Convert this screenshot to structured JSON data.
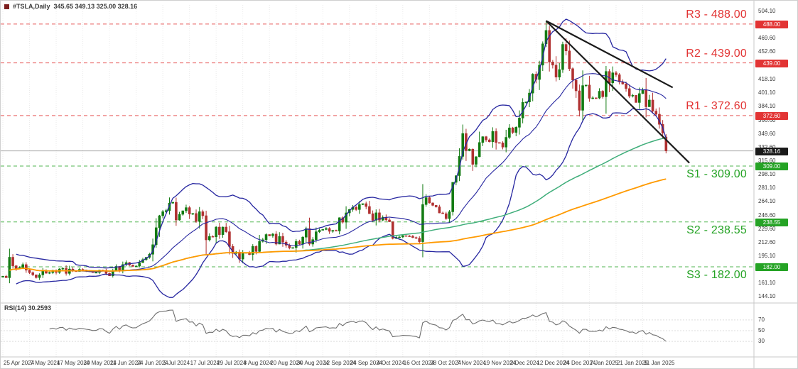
{
  "header": {
    "symbol": "#TSLA,Daily",
    "ohlc": "345.65 349.13 325.00 328.16"
  },
  "rsi_pane": {
    "label": "RSI(14) 30.2593"
  },
  "chart_data": {
    "type": "candlestick",
    "title": "#TSLA,Daily",
    "y_range": [
      140,
      512
    ],
    "y_axis_ticks": [
      504.1,
      486.6,
      469.6,
      452.6,
      435.6,
      418.1,
      401.1,
      384.1,
      366.6,
      349.6,
      332.6,
      315.6,
      298.1,
      281.1,
      264.1,
      246.6,
      229.6,
      212.6,
      195.1,
      178.1,
      161.1,
      144.1
    ],
    "x_tick_labels": [
      "25 Apr 2024",
      "7 May 2024",
      "17 May 2024",
      "30 May 2024",
      "11 Jun 2024",
      "24 Jun 2024",
      "5 Jul 2024",
      "17 Jul 2024",
      "29 Jul 2024",
      "8 Aug 2024",
      "20 Aug 2024",
      "30 Aug 2024",
      "12 Sep 2024",
      "24 Sep 2024",
      "4 Oct 2024",
      "16 Oct 2024",
      "28 Oct 2024",
      "7 Nov 2024",
      "19 Nov 2024",
      "2 Dec 2024",
      "12 Dec 2024",
      "24 Dec 2024",
      "7 Jan 2025",
      "21 Jan 2025",
      "31 Jan 2025"
    ],
    "x_tick_every": 8,
    "closes": [
      170.2,
      168.3,
      194.1,
      183.3,
      180.0,
      181.2,
      184.8,
      177.8,
      174.7,
      172.0,
      168.5,
      171.9,
      177.5,
      174.0,
      174.8,
      177.5,
      175.0,
      179.3,
      180.1,
      173.7,
      179.2,
      176.8,
      176.2,
      178.8,
      178.1,
      177.0,
      176.3,
      174.8,
      175.0,
      177.9,
      177.5,
      173.8,
      170.7,
      177.3,
      182.5,
      178.0,
      184.9,
      187.4,
      184.3,
      182.6,
      183.0,
      187.3,
      191.1,
      194.0,
      197.9,
      209.9,
      231.3,
      246.4,
      251.5,
      252.9,
      262.3,
      263.3,
      241.0,
      248.2,
      252.6,
      256.6,
      248.5,
      249.2,
      239.2,
      251.5,
      246.4,
      216.0,
      220.3,
      219.8,
      232.1,
      222.6,
      232.1,
      226.2,
      207.7,
      198.9,
      200.6,
      191.8,
      200.0,
      200.0,
      197.5,
      207.8,
      201.4,
      214.1,
      216.1,
      222.7,
      221.1,
      223.3,
      210.7,
      220.3,
      213.2,
      209.2,
      205.8,
      206.3,
      214.1,
      210.6,
      219.4,
      230.2,
      210.7,
      216.3,
      226.2,
      228.1,
      229.1,
      230.3,
      226.8,
      227.9,
      227.2,
      243.9,
      238.3,
      250.0,
      254.3,
      257.0,
      254.2,
      260.5,
      261.6,
      258.0,
      249.0,
      240.7,
      250.1,
      240.8,
      244.5,
      241.1,
      238.8,
      217.8,
      219.2,
      219.6,
      221.3,
      220.9,
      220.7,
      218.9,
      218.0,
      213.7,
      260.5,
      269.2,
      262.5,
      259.5,
      257.6,
      249.9,
      249.0,
      242.8,
      251.4,
      288.5,
      296.9,
      321.2,
      350.0,
      328.5,
      330.2,
      311.2,
      320.7,
      338.7,
      346.0,
      342.0,
      339.6,
      352.6,
      338.6,
      338.2,
      332.9,
      345.2,
      357.1,
      351.4,
      357.9,
      369.5,
      389.2,
      389.8,
      401.0,
      424.8,
      418.1,
      436.2,
      463.0,
      479.9,
      440.1,
      436.2,
      421.1,
      430.6,
      462.3,
      454.1,
      431.7,
      417.4,
      403.8,
      379.3,
      410.4,
      411.1,
      394.4,
      394.9,
      394.7,
      403.3,
      396.4,
      428.2,
      413.8,
      426.5,
      424.1,
      415.1,
      412.4,
      406.6,
      397.2,
      398.1,
      389.1,
      400.3,
      404.6,
      383.7,
      392.2,
      378.2,
      374.3,
      361.6,
      350.7,
      328.16
    ],
    "current_bar": {
      "open": 345.65,
      "high": 349.13,
      "low": 325.0,
      "close": 328.16
    },
    "current_price": {
      "value": 328.16,
      "tag": "328.16",
      "color": "#1a1a1a"
    },
    "levels": [
      {
        "name": "R3",
        "label": "R3 - 488.00",
        "value": 488.0,
        "tag": "488.00",
        "type": "resistance"
      },
      {
        "name": "R2",
        "label": "R2 - 439.00",
        "value": 439.0,
        "tag": "439.00",
        "type": "resistance"
      },
      {
        "name": "R1",
        "label": "R1 - 372.60",
        "value": 372.6,
        "tag": "372.60",
        "type": "resistance"
      },
      {
        "name": "S1",
        "label": "S1 - 309.00",
        "value": 309.0,
        "tag": "309.00",
        "type": "support"
      },
      {
        "name": "S2",
        "label": "S2 - 238.55",
        "value": 238.55,
        "tag": "238.55",
        "type": "support"
      },
      {
        "name": "S3",
        "label": "S3 - 182.00",
        "value": 182.0,
        "tag": "182.00",
        "type": "support"
      }
    ],
    "trendlines": [
      {
        "x1": 163,
        "p1": 492,
        "x2": 201,
        "p2": 408
      },
      {
        "x1": 163,
        "p1": 492,
        "x2": 206,
        "p2": 313
      }
    ],
    "indicators": {
      "bollinger": {
        "period": 20,
        "deviation": 2
      },
      "ma_fast": {
        "period": 90
      },
      "ma_slow": {
        "period": 160
      },
      "rsi": {
        "period": 14,
        "current": 30.2593,
        "levels": [
          70,
          50,
          30
        ]
      }
    },
    "colors": {
      "bull": "#127b12",
      "bear": "#b03030",
      "bollinger": "#2626a0",
      "ma_fast": "#3fae7a",
      "ma_slow": "#ff9a00",
      "resistance": "#e23434",
      "support": "#25a325",
      "current": "#1a1a1a",
      "grid": "#ebebeb",
      "separator": "#c8c8c8",
      "rsi_line": "#6e6e6e"
    }
  }
}
